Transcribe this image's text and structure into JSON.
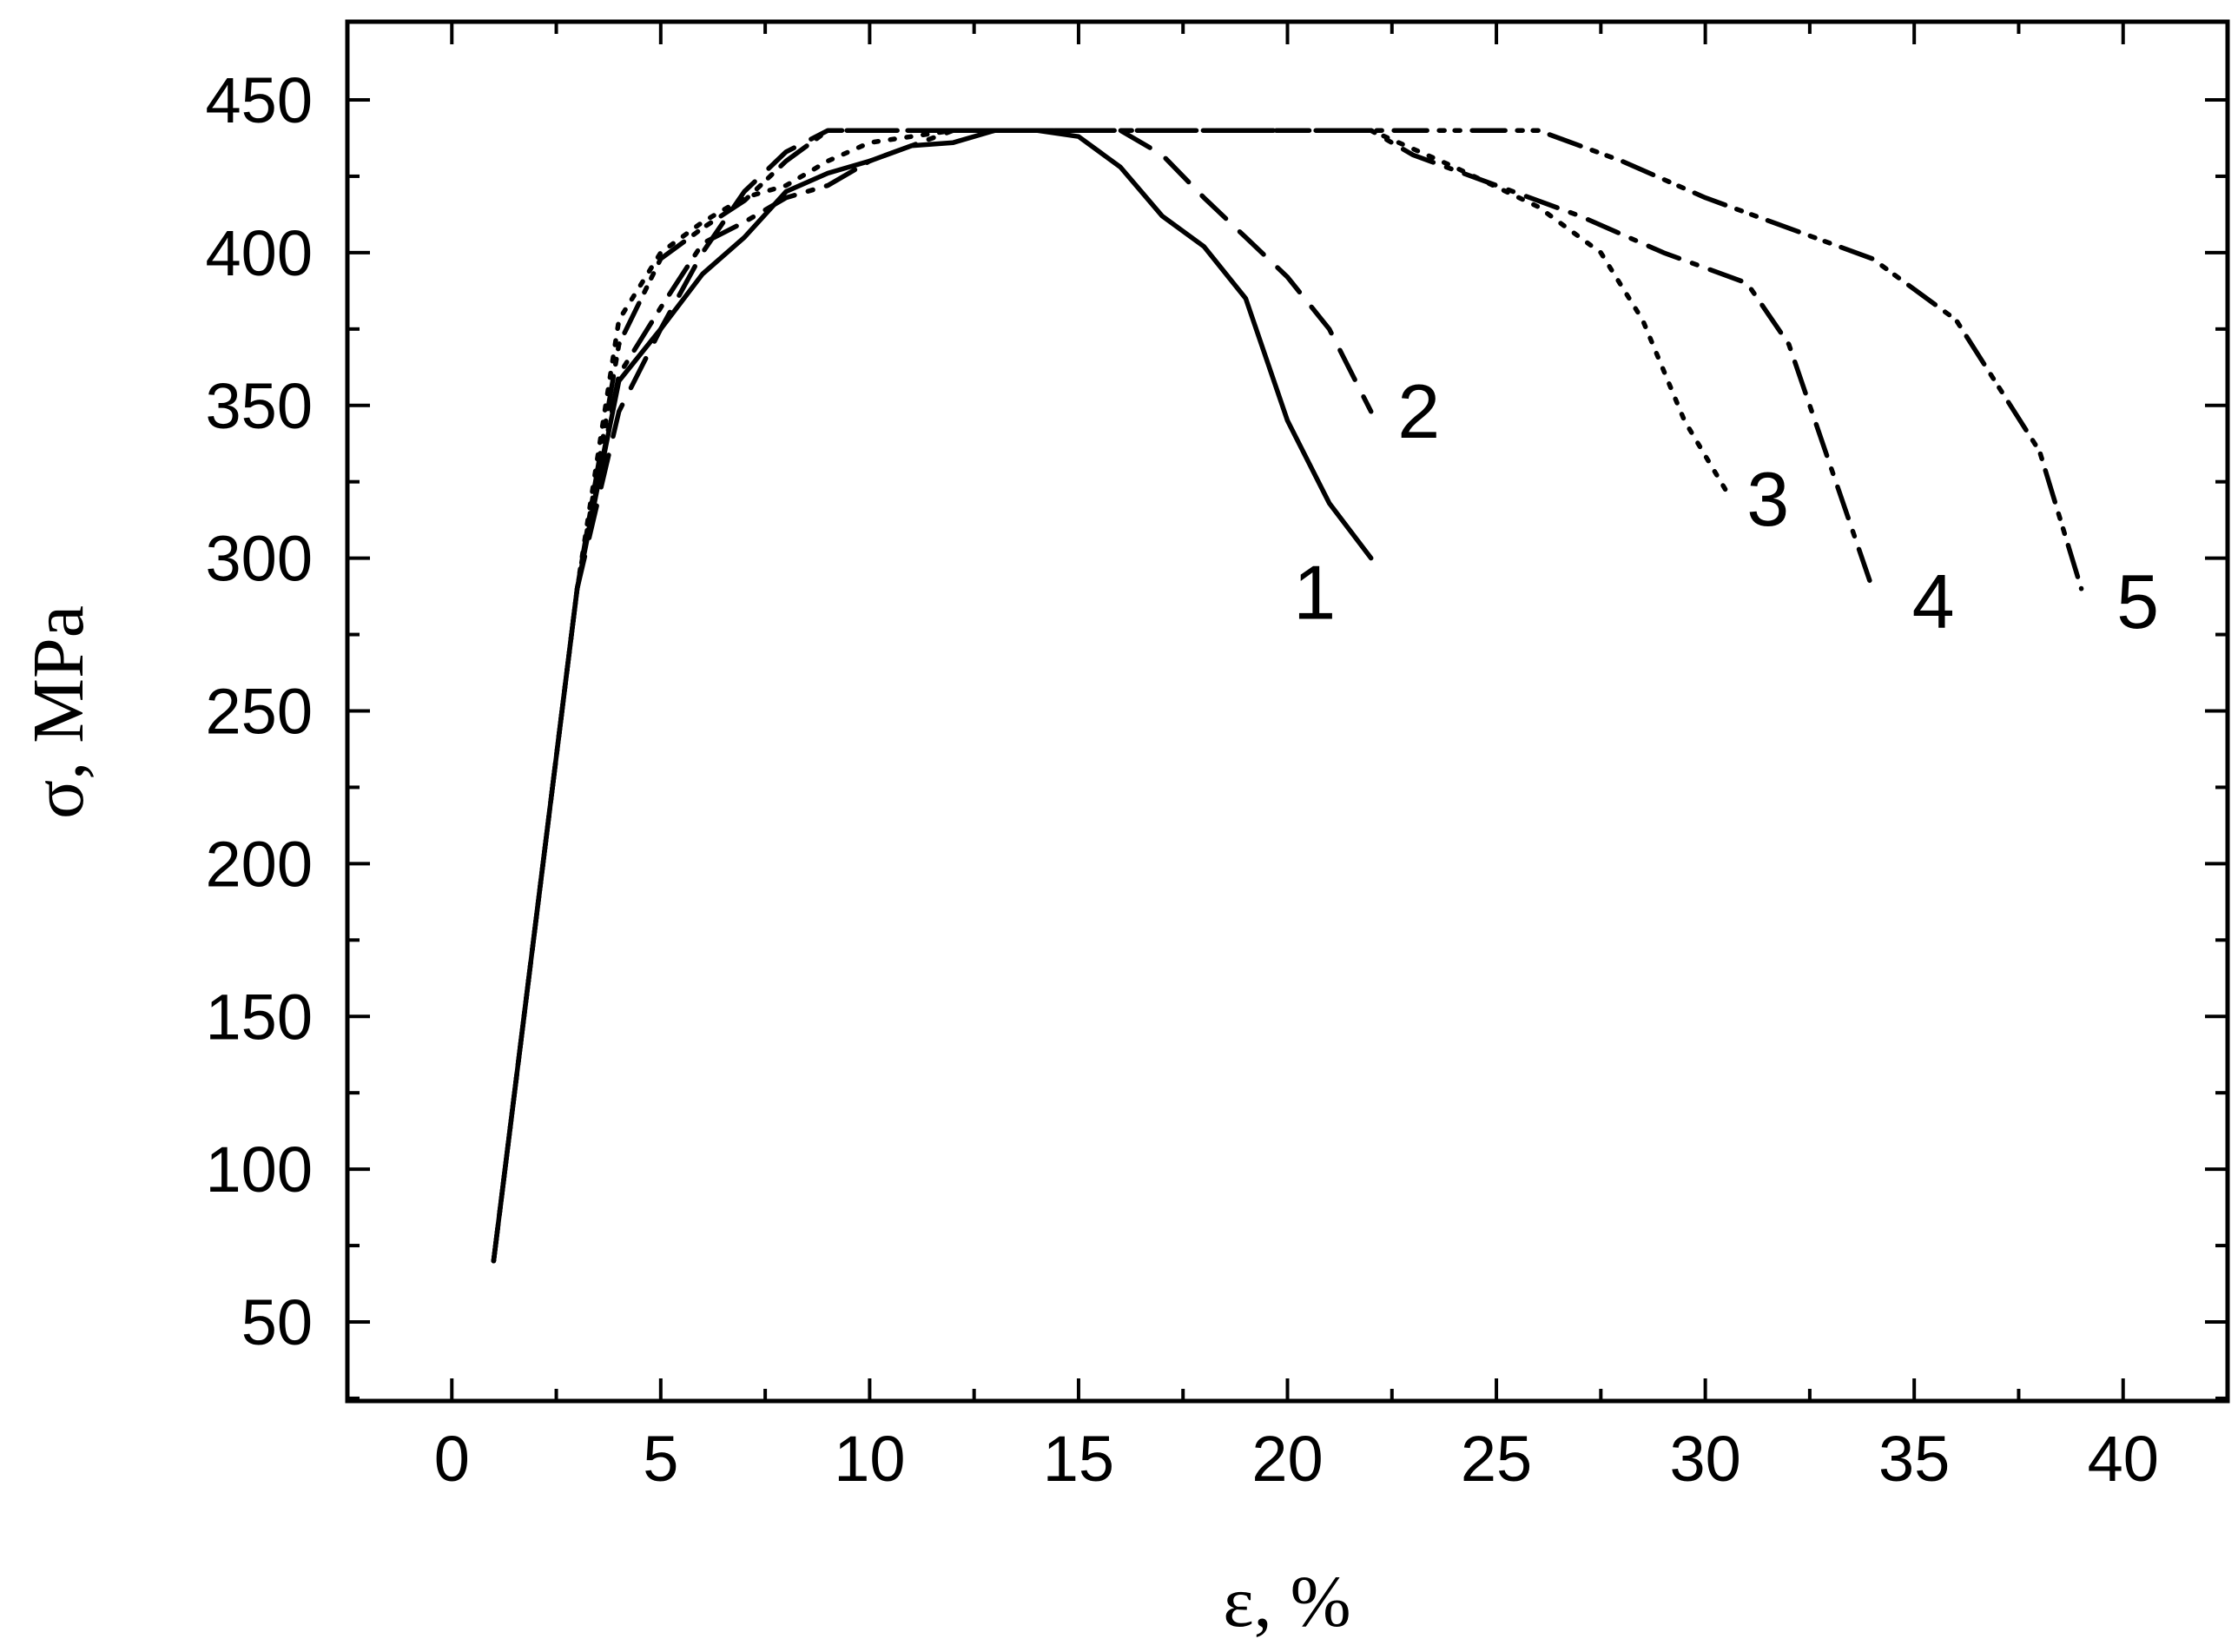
{
  "chart_data": {
    "type": "line",
    "title": "",
    "xlabel": "ε, %",
    "ylabel": "σ, MPa",
    "xlim": [
      -2.5,
      42.5
    ],
    "ylim": [
      25,
      450
    ],
    "x_ticks": [
      0,
      5,
      10,
      15,
      20,
      25,
      30,
      35,
      40
    ],
    "y_ticks": [
      50,
      100,
      150,
      200,
      250,
      300,
      350,
      400,
      450
    ],
    "x_minor_step": 2.5,
    "y_minor_step": 25,
    "grid": false,
    "legend": "none",
    "series": [
      {
        "name": "1",
        "style": "solid",
        "x": [
          1.0,
          2.0,
          3.0,
          4.0,
          5.0,
          6.0,
          7.0,
          8.0,
          9.0,
          10.0,
          11.0,
          12.0,
          13.0,
          14.0,
          15.0,
          16.0,
          17.0,
          18.0,
          19.0,
          20.0,
          21.0,
          22.0
        ],
        "y": [
          70,
          180,
          290,
          358,
          375,
          393,
          405,
          420,
          426,
          430,
          435,
          436,
          440,
          440,
          438,
          428,
          412,
          402,
          385,
          345,
          318,
          300
        ]
      },
      {
        "name": "2",
        "style": "dashed",
        "x": [
          1.0,
          2.0,
          3.0,
          4.0,
          5.0,
          6.0,
          7.0,
          8.0,
          9.0,
          10.0,
          12.0,
          14.0,
          16.0,
          17.0,
          18.0,
          19.0,
          20.0,
          21.0,
          22.0
        ],
        "y": [
          70,
          180,
          290,
          348,
          375,
          400,
          420,
          433,
          440,
          440,
          440,
          440,
          440,
          432,
          418,
          405,
          392,
          375,
          348
        ]
      },
      {
        "name": "3",
        "style": "dotted",
        "x": [
          1.0,
          2.0,
          3.0,
          4.0,
          5.0,
          6.0,
          7.0,
          8.0,
          9.0,
          10.0,
          12.0,
          14.0,
          16.0,
          18.0,
          20.0,
          22.0,
          24.0,
          26.0,
          27.5,
          28.5,
          29.5,
          30.5
        ],
        "y": [
          70,
          180,
          290,
          378,
          400,
          410,
          418,
          422,
          430,
          436,
          440,
          440,
          440,
          440,
          440,
          440,
          428,
          415,
          400,
          378,
          345,
          322
        ]
      },
      {
        "name": "4",
        "style": "dash-dot",
        "x": [
          1.0,
          2.0,
          3.0,
          4.0,
          5.0,
          6.0,
          7.0,
          8.0,
          9.0,
          10.0,
          12.0,
          14.0,
          16.0,
          18.0,
          20.0,
          22.0,
          23.0,
          25.0,
          27.0,
          29.0,
          31.0,
          32.0,
          33.0,
          34.0
        ],
        "y": [
          70,
          180,
          290,
          360,
          382,
          403,
          410,
          418,
          422,
          430,
          440,
          440,
          440,
          440,
          440,
          440,
          432,
          422,
          412,
          400,
          390,
          370,
          330,
          290
        ]
      },
      {
        "name": "5",
        "style": "dash-dot-dot",
        "x": [
          1.0,
          2.0,
          3.0,
          4.0,
          5.0,
          6.0,
          7.0,
          8.0,
          9.0,
          10.0,
          12.0,
          14.0,
          16.0,
          18.0,
          20.0,
          22.0,
          24.0,
          26.0,
          28.0,
          30.0,
          32.0,
          34.0,
          36.0,
          38.0,
          39.0
        ],
        "y": [
          70,
          180,
          290,
          370,
          398,
          408,
          417,
          430,
          440,
          440,
          440,
          440,
          440,
          440,
          440,
          440,
          440,
          440,
          430,
          418,
          408,
          398,
          378,
          335,
          290
        ]
      }
    ],
    "curve_labels": [
      {
        "series": "1",
        "text": "1"
      },
      {
        "series": "2",
        "text": "2"
      },
      {
        "series": "3",
        "text": "3"
      },
      {
        "series": "4",
        "text": "4"
      },
      {
        "series": "5",
        "text": "5"
      }
    ]
  }
}
